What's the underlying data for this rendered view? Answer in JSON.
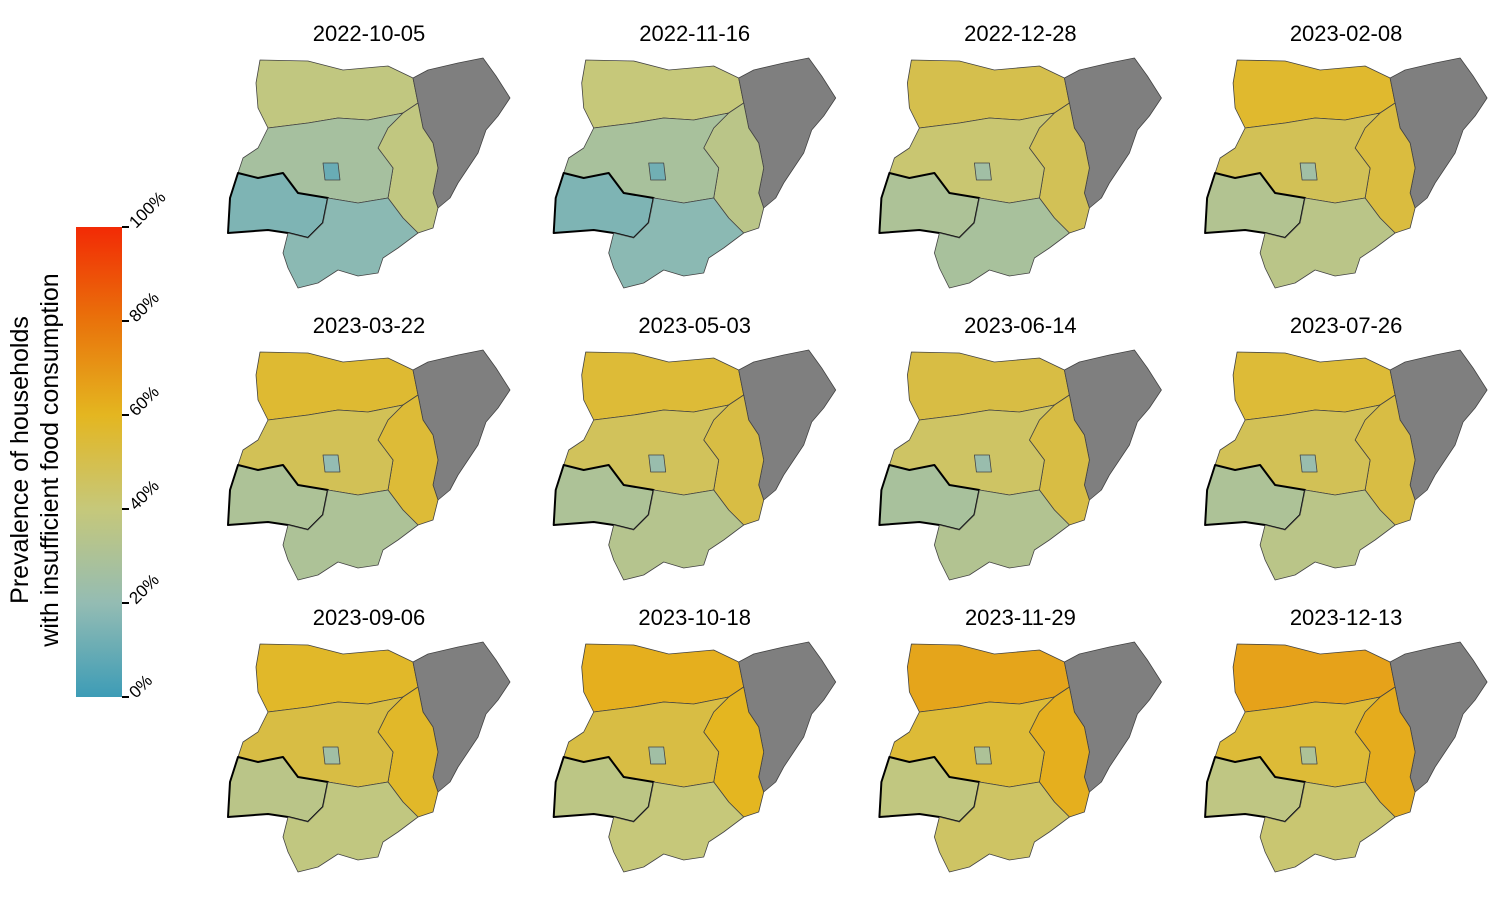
{
  "chart_data": {
    "type": "choropleth-grid",
    "legend_title": [
      "Prevalence of households",
      "with insufficient food consumption"
    ],
    "colorbar": {
      "lim": [
        0,
        100
      ],
      "ticks": [
        {
          "value": 0,
          "label": "0%"
        },
        {
          "value": 20,
          "label": "20%"
        },
        {
          "value": 40,
          "label": "40%"
        },
        {
          "value": 60,
          "label": "60%"
        },
        {
          "value": 80,
          "label": "80%"
        },
        {
          "value": 100,
          "label": "100%"
        }
      ],
      "colors": [
        "#3d9cb6",
        "#94bcb3",
        "#c6c87a",
        "#e4b620",
        "#e9730b",
        "#f22a05"
      ]
    },
    "na_color": "#7f7f7f",
    "panels": [
      {
        "date": "2022-10-05",
        "values": [
          38,
          null,
          38,
          27,
          15,
          18,
          10
        ]
      },
      {
        "date": "2022-11-16",
        "values": [
          40,
          null,
          35,
          28,
          15,
          18,
          12
        ]
      },
      {
        "date": "2022-12-28",
        "values": [
          50,
          null,
          48,
          42,
          30,
          28,
          25
        ]
      },
      {
        "date": "2023-02-08",
        "values": [
          57,
          null,
          53,
          48,
          32,
          35,
          25
        ]
      },
      {
        "date": "2023-03-22",
        "values": [
          56,
          null,
          55,
          48,
          30,
          30,
          20
        ]
      },
      {
        "date": "2023-05-03",
        "values": [
          55,
          null,
          52,
          47,
          30,
          33,
          22
        ]
      },
      {
        "date": "2023-06-14",
        "values": [
          52,
          null,
          52,
          45,
          28,
          32,
          22
        ]
      },
      {
        "date": "2023-07-26",
        "values": [
          55,
          null,
          52,
          48,
          30,
          35,
          22
        ]
      },
      {
        "date": "2023-09-06",
        "values": [
          58,
          null,
          58,
          52,
          35,
          38,
          25
        ]
      },
      {
        "date": "2023-10-18",
        "values": [
          62,
          null,
          60,
          52,
          36,
          40,
          25
        ]
      },
      {
        "date": "2023-11-29",
        "values": [
          65,
          null,
          62,
          55,
          38,
          45,
          30
        ]
      },
      {
        "date": "2023-12-13",
        "values": [
          66,
          null,
          63,
          55,
          37,
          42,
          30
        ]
      }
    ]
  }
}
